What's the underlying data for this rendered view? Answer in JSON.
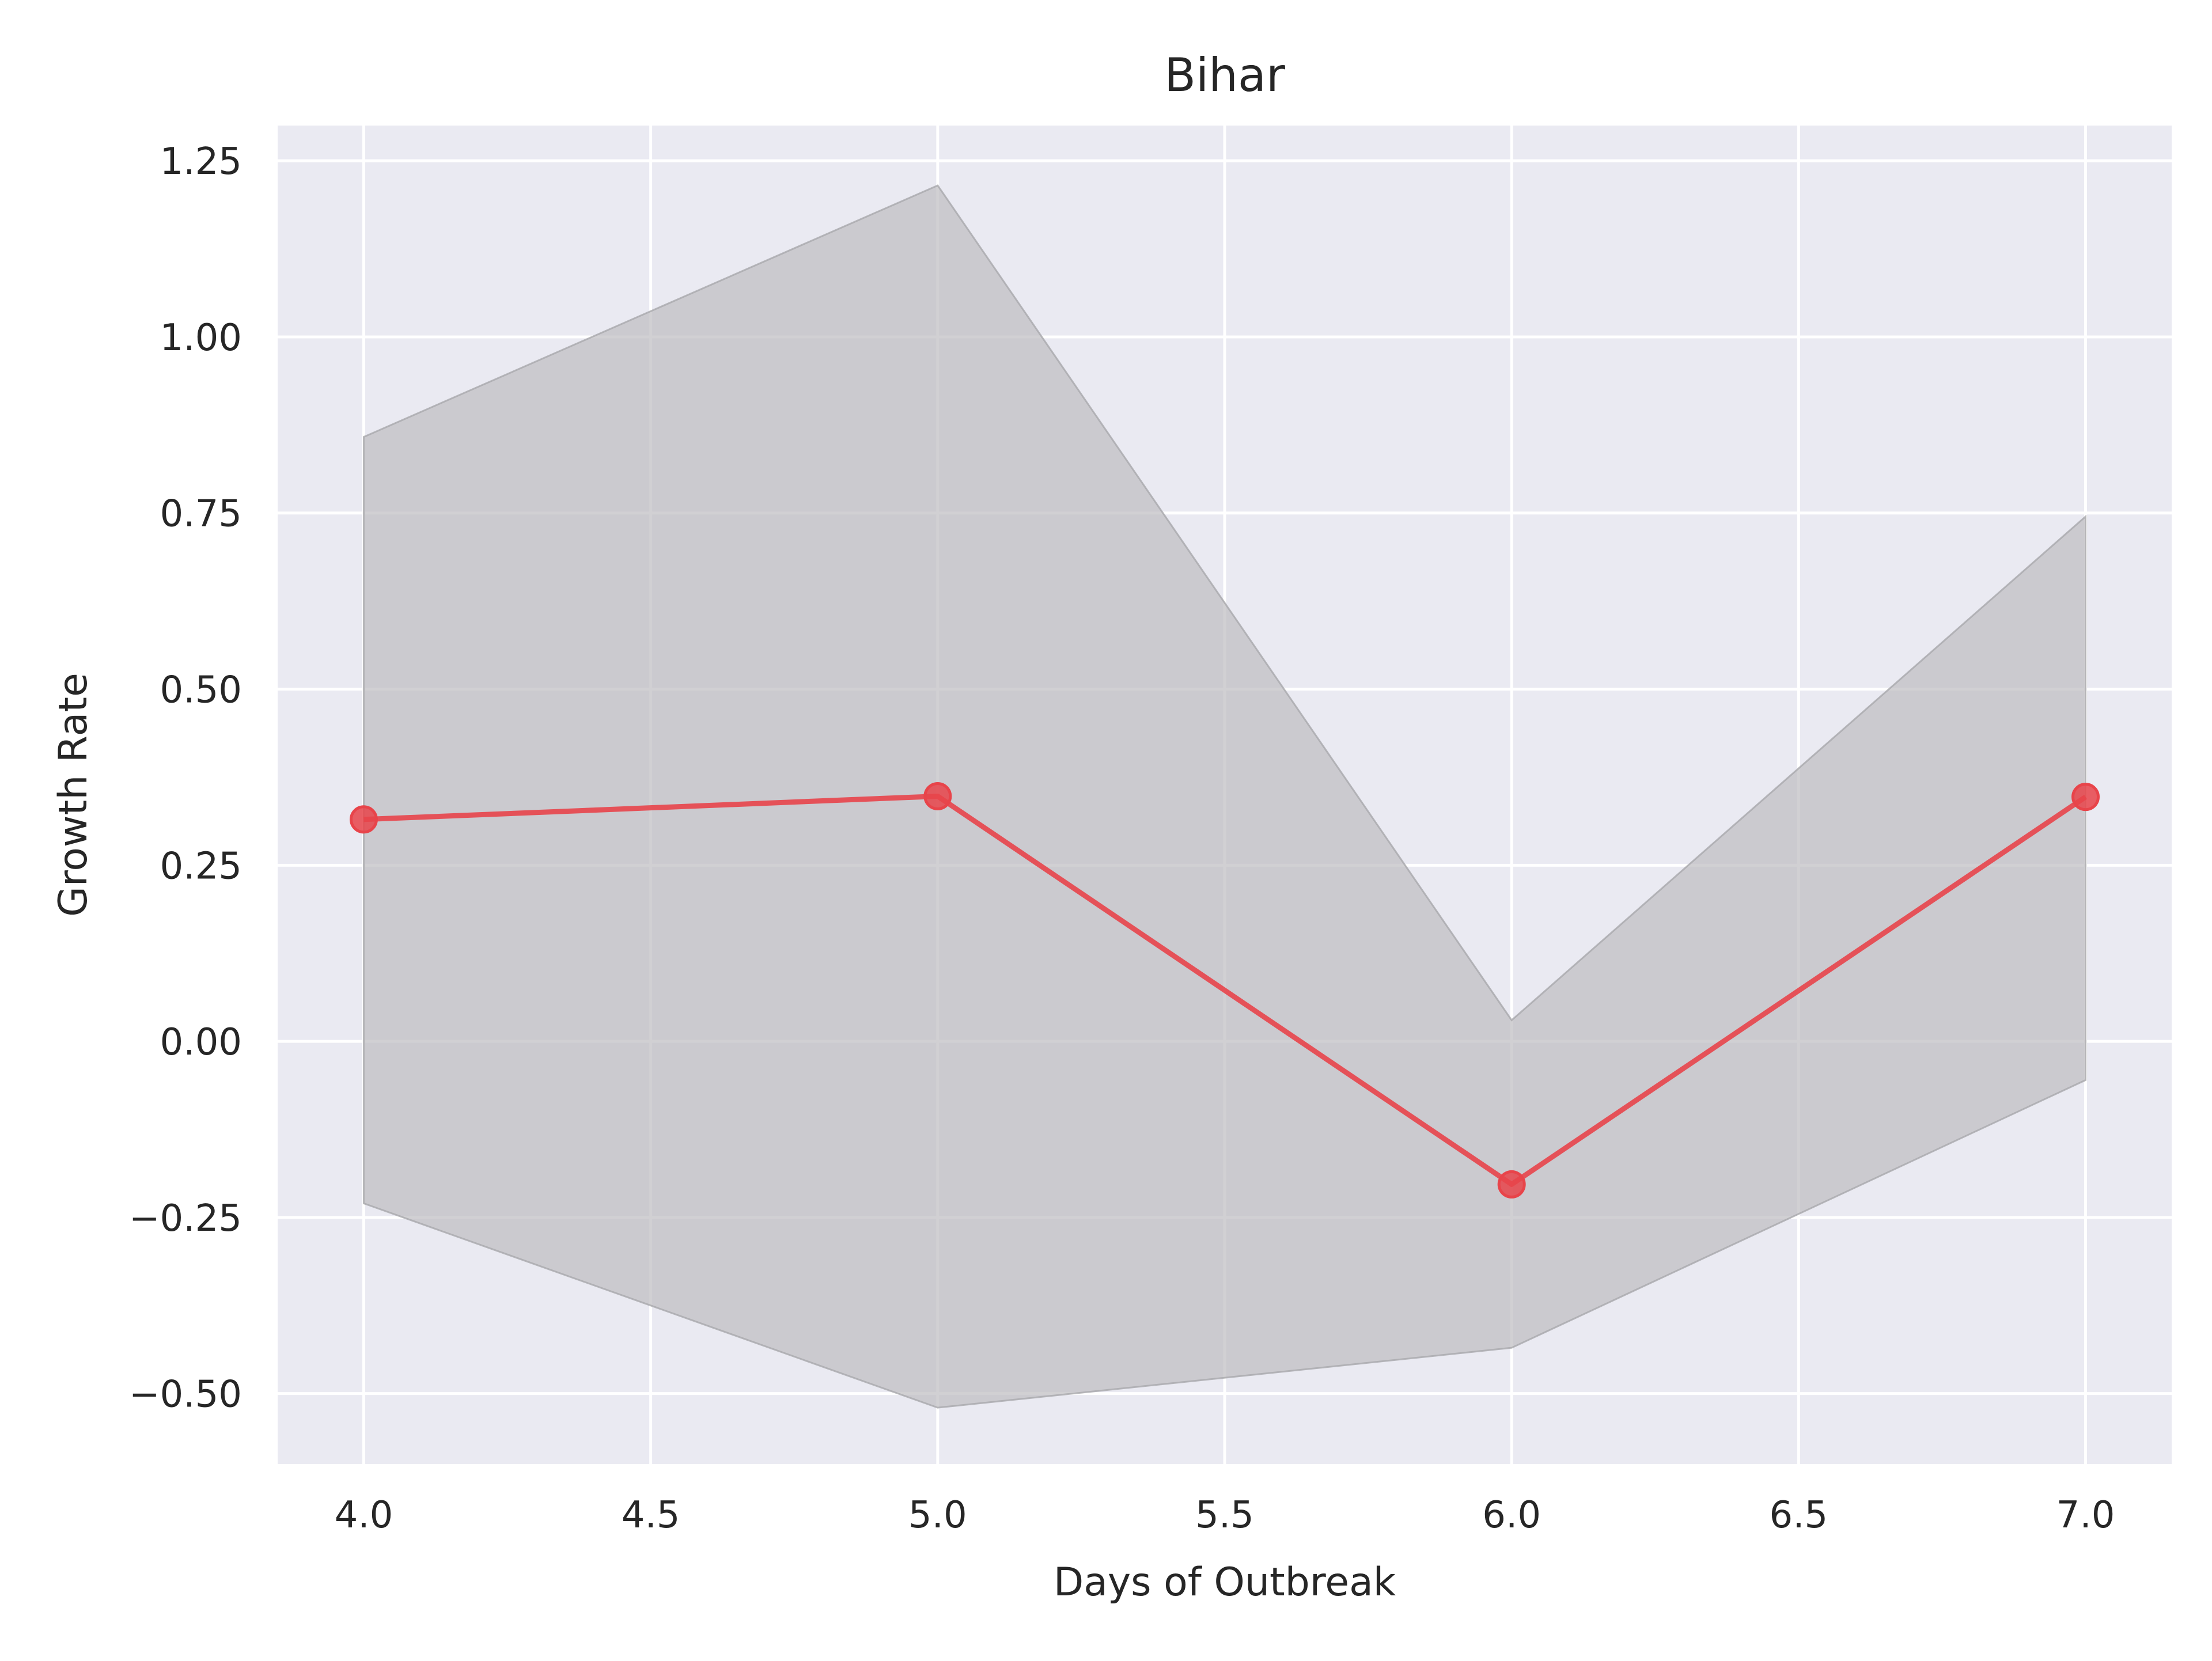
{
  "chart_data": {
    "type": "line",
    "title": "Bihar",
    "xlabel": "Days of Outbreak",
    "ylabel": "Growth Rate",
    "xlim": [
      3.85,
      7.15
    ],
    "ylim": [
      -0.6,
      1.3
    ],
    "x_ticks": [
      4.0,
      4.5,
      5.0,
      5.5,
      6.0,
      6.5,
      7.0
    ],
    "x_tick_labels": [
      "4.0",
      "4.5",
      "5.0",
      "5.5",
      "6.0",
      "6.5",
      "7.0"
    ],
    "y_ticks": [
      -0.5,
      -0.25,
      0.0,
      0.25,
      0.5,
      0.75,
      1.0,
      1.25
    ],
    "y_tick_labels": [
      "−0.50",
      "−0.25",
      "0.00",
      "0.25",
      "0.50",
      "0.75",
      "1.00",
      "1.25"
    ],
    "grid": true,
    "series": [
      {
        "x": [
          4.0,
          5.0,
          6.0,
          7.0
        ],
        "y": [
          0.315,
          0.348,
          -0.203,
          0.347
        ],
        "lower": [
          -0.23,
          -0.52,
          -0.435,
          -0.055
        ],
        "upper": [
          0.858,
          1.215,
          0.03,
          0.745
        ],
        "color": "#e8444a",
        "band_color": "#bdbcc0"
      }
    ],
    "background_color": "#eaeaf2",
    "grid_color": "#ffffff"
  }
}
